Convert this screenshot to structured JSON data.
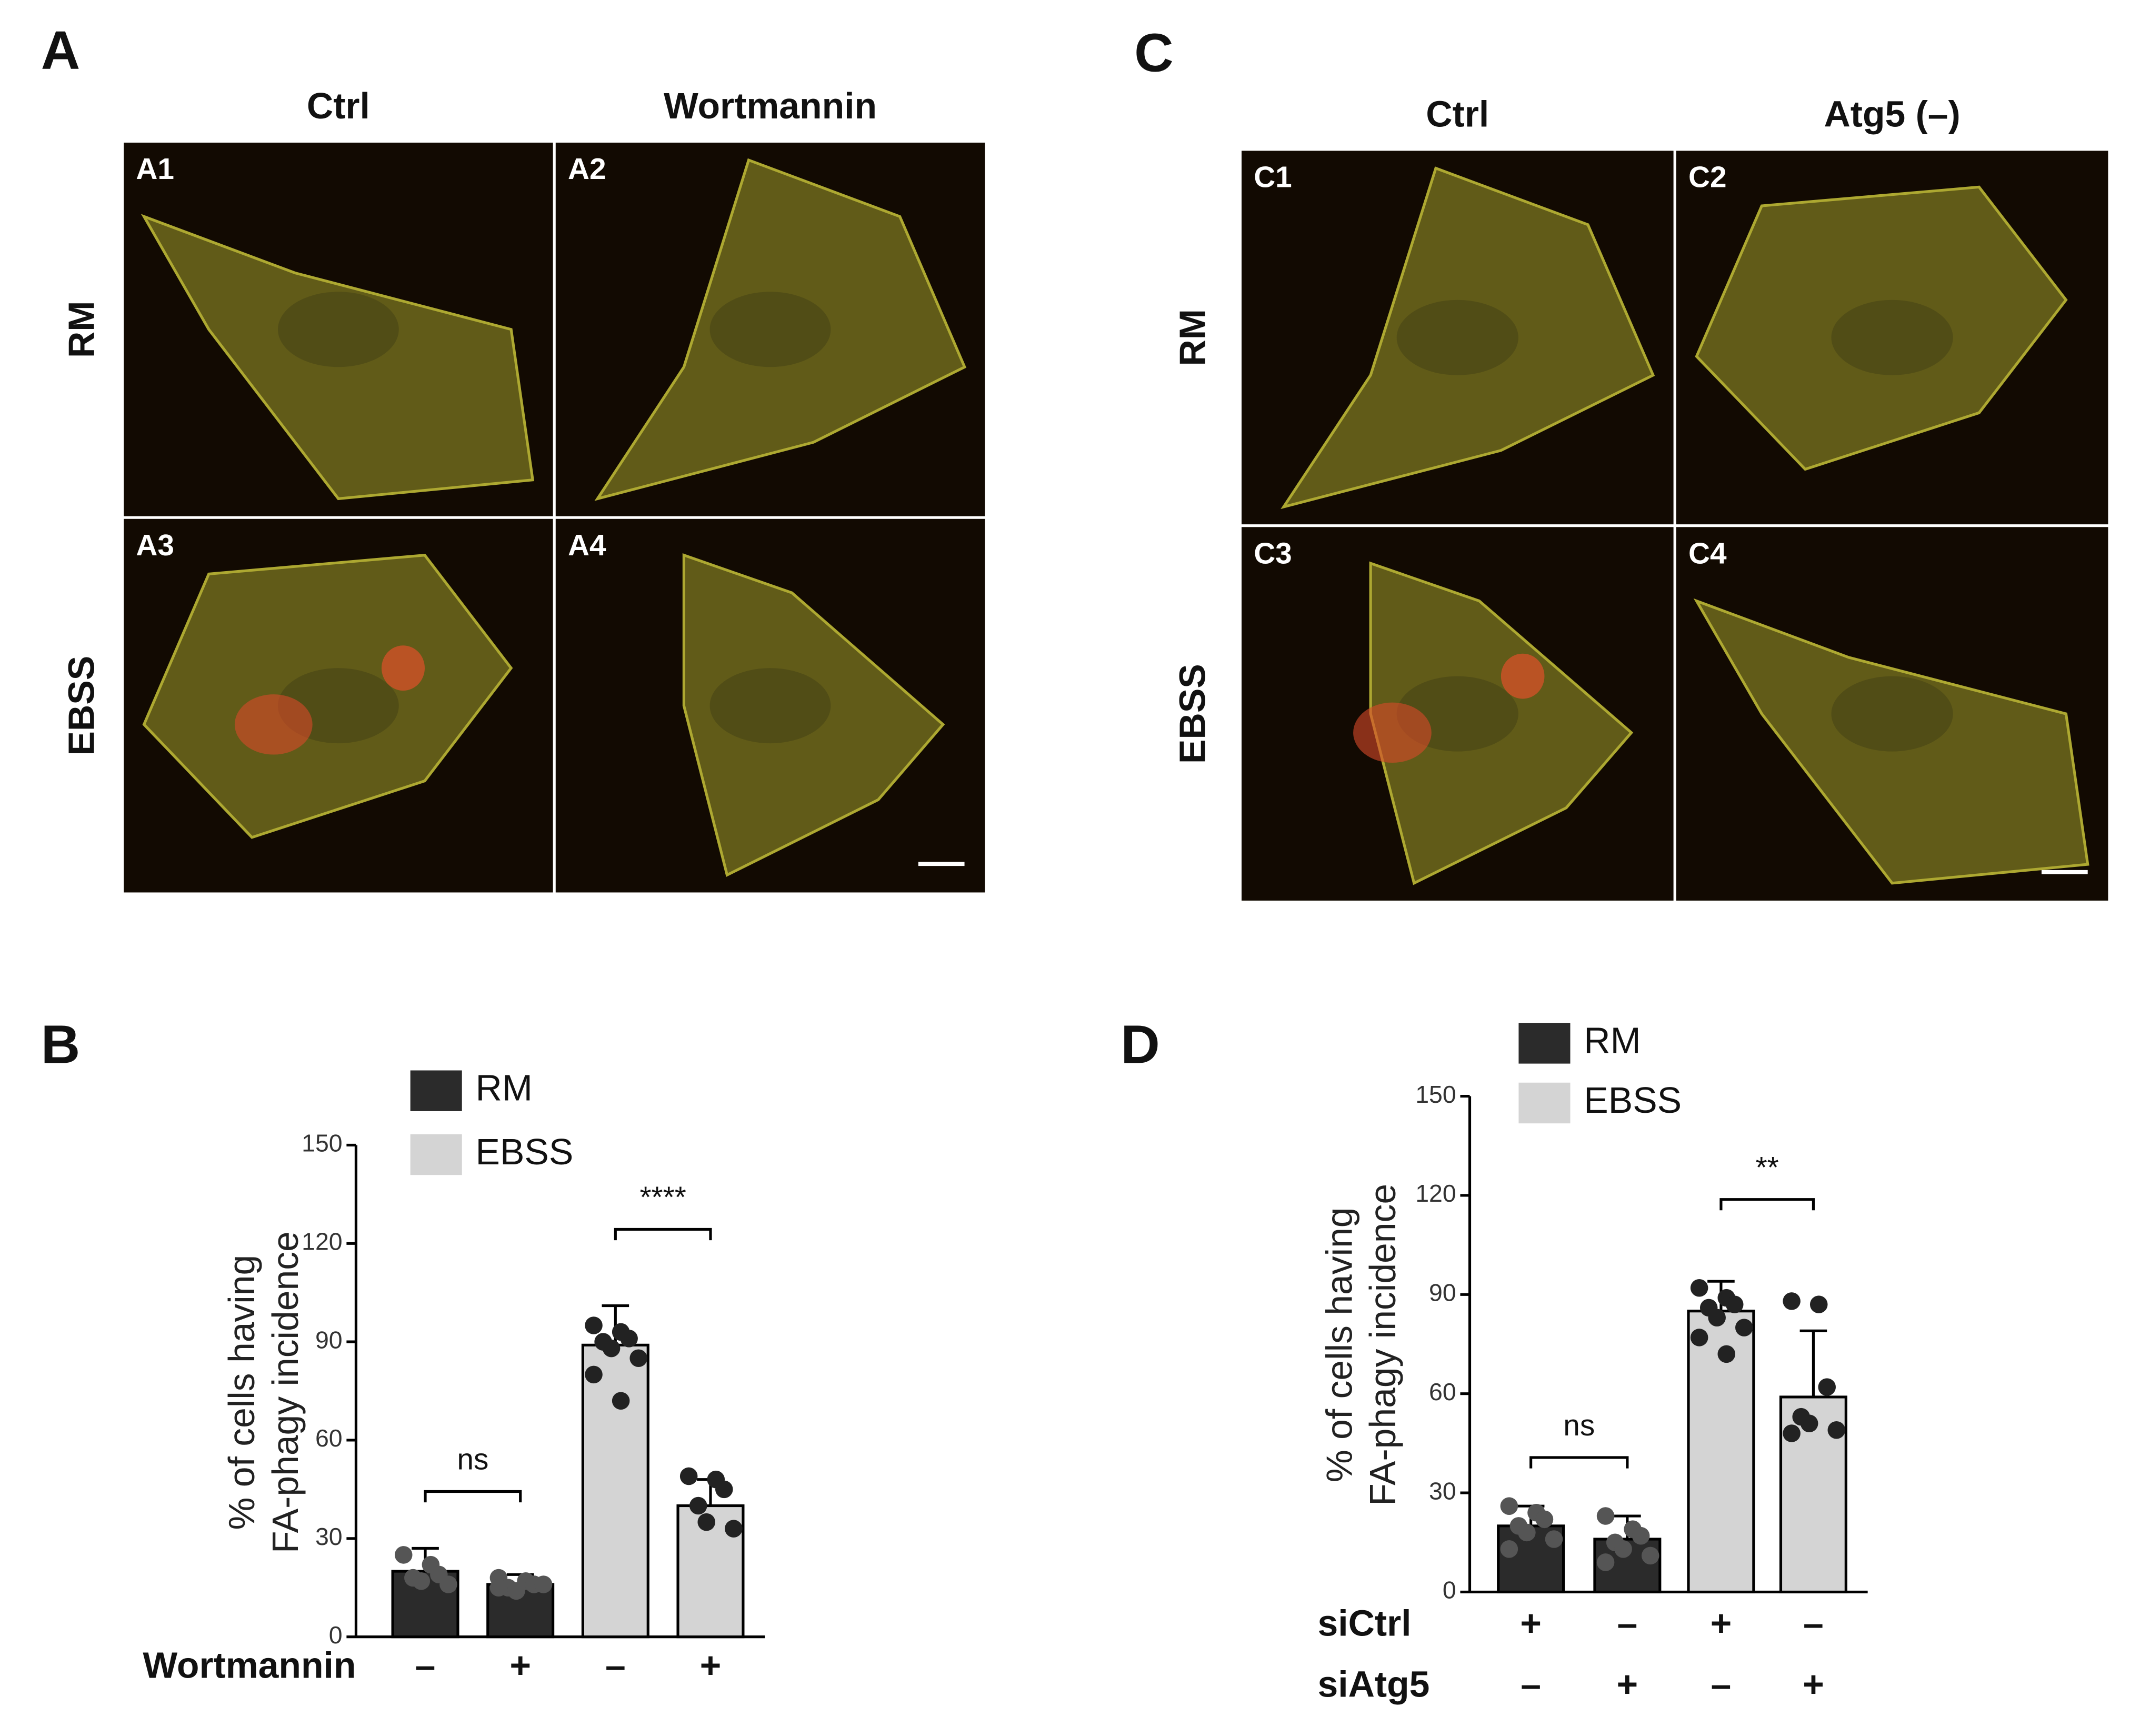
{
  "panels": [
    {
      "label": "A",
      "columns": [
        "Ctrl",
        "Wortmannin"
      ],
      "rows": [
        "RM",
        "EBSS"
      ],
      "images": [
        "A1",
        "A2",
        "A3",
        "A4"
      ]
    },
    {
      "label": "C",
      "columns": [
        "Ctrl",
        "Atg5 (–)"
      ],
      "rows": [
        "RM",
        "EBSS"
      ],
      "images": [
        "C1",
        "C2",
        "C3",
        "C4"
      ]
    }
  ],
  "chart_data": [
    {
      "type": "bar",
      "panel_label": "B",
      "ylabel": [
        "% of cells having",
        "FA-phagy incidence"
      ],
      "ylim": [
        0,
        150
      ],
      "yticks": [
        0,
        30,
        60,
        90,
        120,
        150
      ],
      "conditions": [
        {
          "name": "Wortmannin",
          "values": [
            "–",
            "+",
            "–",
            "+"
          ]
        }
      ],
      "series": [
        {
          "name": "RM",
          "color": "#2b2b2b",
          "values": [
            20,
            16,
            null,
            null
          ],
          "errors": [
            7,
            3,
            null,
            null
          ],
          "points": [
            [
              25,
              22,
              19,
              18,
              17,
              16
            ],
            [
              18,
              17,
              16,
              15,
              14,
              16,
              15
            ],
            null,
            null
          ]
        },
        {
          "name": "EBSS",
          "color": "#d4d4d4",
          "values": [
            null,
            null,
            89,
            40
          ],
          "errors": [
            null,
            null,
            12,
            8
          ],
          "points": [
            null,
            null,
            [
              95,
              93,
              91,
              90,
              88,
              85,
              80,
              72
            ],
            [
              49,
              48,
              45,
              40,
              35,
              33
            ]
          ]
        }
      ],
      "comparisons": [
        {
          "label": "ns"
        },
        {
          "label": "****"
        }
      ]
    },
    {
      "type": "bar",
      "panel_label": "D",
      "ylabel": [
        "% of cells having",
        "FA-phagy incidence"
      ],
      "ylim": [
        0,
        150
      ],
      "yticks": [
        0,
        30,
        60,
        90,
        120,
        150
      ],
      "conditions": [
        {
          "name": "siCtrl",
          "values": [
            "+",
            "–",
            "+",
            "–"
          ]
        },
        {
          "name": "siAtg5",
          "values": [
            "–",
            "+",
            "–",
            "+"
          ]
        }
      ],
      "series": [
        {
          "name": "RM",
          "color": "#2b2b2b",
          "values": [
            20,
            16,
            null,
            null
          ],
          "errors": [
            6,
            7,
            null,
            null
          ],
          "points": [
            [
              26,
              24,
              22,
              20,
              18,
              16,
              13
            ],
            [
              23,
              19,
              17,
              15,
              13,
              11,
              9
            ],
            null,
            null
          ]
        },
        {
          "name": "EBSS",
          "color": "#d4d4d4",
          "values": [
            null,
            null,
            85,
            59
          ],
          "errors": [
            null,
            null,
            9,
            20
          ],
          "points": [
            null,
            null,
            [
              92,
              89,
              87,
              86,
              83,
              80,
              77,
              72
            ],
            [
              88,
              87,
              62,
              53,
              51,
              49,
              48
            ]
          ]
        }
      ],
      "comparisons": [
        {
          "label": "ns"
        },
        {
          "label": "**"
        }
      ]
    }
  ]
}
